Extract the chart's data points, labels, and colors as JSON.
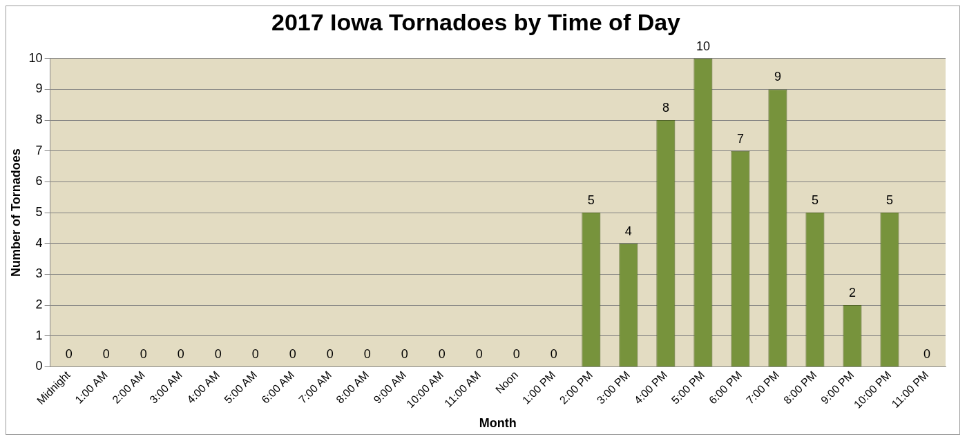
{
  "chart_data": {
    "type": "bar",
    "title": "2017 Iowa Tornadoes by Time of Day",
    "xlabel": "Month",
    "ylabel": "Number of Tornadoes",
    "categories": [
      "Midnight",
      "1:00 AM",
      "2:00 AM",
      "3:00 AM",
      "4:00 AM",
      "5:00 AM",
      "6:00 AM",
      "7:00 AM",
      "8:00 AM",
      "9:00 AM",
      "10:00 AM",
      "11:00 AM",
      "Noon",
      "1:00 PM",
      "2:00 PM",
      "3:00 PM",
      "4:00 PM",
      "5:00 PM",
      "6:00 PM",
      "7:00 PM",
      "8:00 PM",
      "9:00 PM",
      "10:00 PM",
      "11:00 PM"
    ],
    "values": [
      0,
      0,
      0,
      0,
      0,
      0,
      0,
      0,
      0,
      0,
      0,
      0,
      0,
      0,
      5,
      4,
      8,
      10,
      7,
      9,
      5,
      2,
      5,
      0
    ],
    "color": "#77933c",
    "ylim": [
      0,
      10
    ],
    "yticks": [
      0,
      1,
      2,
      3,
      4,
      5,
      6,
      7,
      8,
      9,
      10
    ],
    "grid": "y",
    "data_labels": true,
    "legend": false
  }
}
